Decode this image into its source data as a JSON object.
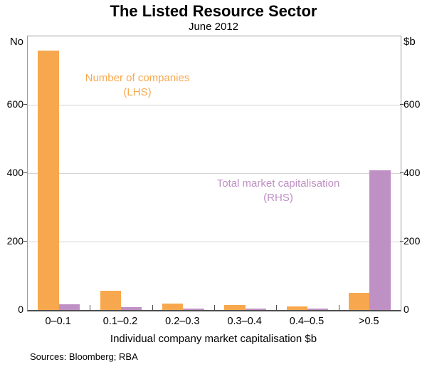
{
  "chart_data": {
    "type": "bar",
    "title": "The Listed Resource Sector",
    "subtitle": "June 2012",
    "categories": [
      "0–0.1",
      "0.1–0.2",
      "0.2–0.3",
      "0.3–0.4",
      "0.4–0.5",
      ">0.5"
    ],
    "xlabel": "Individual company market capitalisation $b",
    "left_axis": {
      "unit_label": "No",
      "ticks": [
        0,
        200,
        400,
        600
      ],
      "lim": [
        0,
        800
      ]
    },
    "right_axis": {
      "unit_label": "$b",
      "ticks": [
        0,
        200,
        400,
        600
      ],
      "lim": [
        0,
        800
      ]
    },
    "series": [
      {
        "name": "Number of companies",
        "axis_note": "(LHS)",
        "axis": "left",
        "color": "#F7A84E",
        "values": [
          758,
          57,
          19,
          14,
          11,
          50
        ]
      },
      {
        "name": "Total market capitalisation",
        "axis_note": "(RHS)",
        "axis": "right",
        "color": "#BE90C4",
        "values": [
          17,
          8,
          4,
          5,
          4,
          408
        ]
      }
    ],
    "grid": true,
    "legend_position": "in-plot colored annotations",
    "source": "Sources: Bloomberg; RBA"
  },
  "colors": {
    "orange": "#F7A84E",
    "purple": "#BE90C4",
    "gridline": "#D4D4D4",
    "frame": "#9A9A9A",
    "baseline": "#4D4D4D"
  }
}
